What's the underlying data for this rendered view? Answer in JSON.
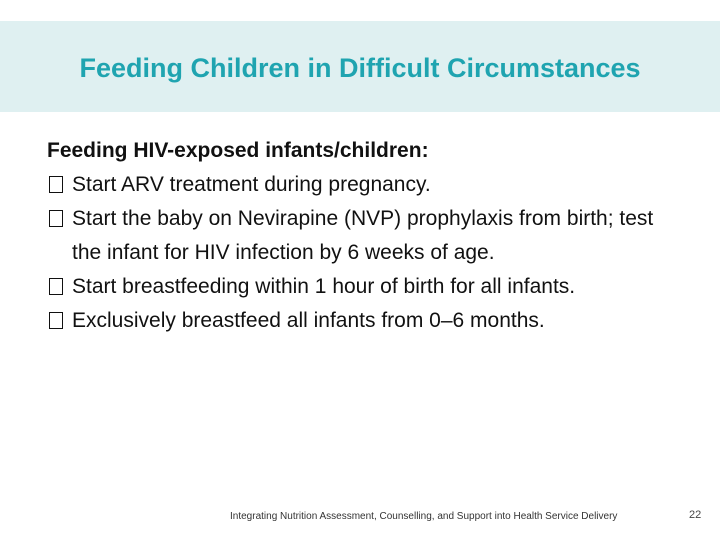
{
  "slide": {
    "title": "Feeding Children in Difficult Circumstances",
    "heading": "Feeding HIV-exposed infants/children:",
    "bullets": [
      "Start ARV treatment during pregnancy.",
      "Start the baby on Nevirapine (NVP) prophylaxis from birth; test the infant for HIV infection by 6 weeks of age.",
      "Start breastfeeding within 1 hour of birth for all infants.",
      "Exclusively breastfeed all infants from 0–6 months."
    ],
    "bullet_icon": "box-bullet-icon"
  },
  "footer": {
    "text": "Integrating Nutrition Assessment, Counselling, and Support into Health Service Delivery",
    "page_number": "22"
  },
  "colors": {
    "title_text": "#1fa4b0",
    "title_band": "#dff0f1",
    "body_text": "#111111"
  }
}
